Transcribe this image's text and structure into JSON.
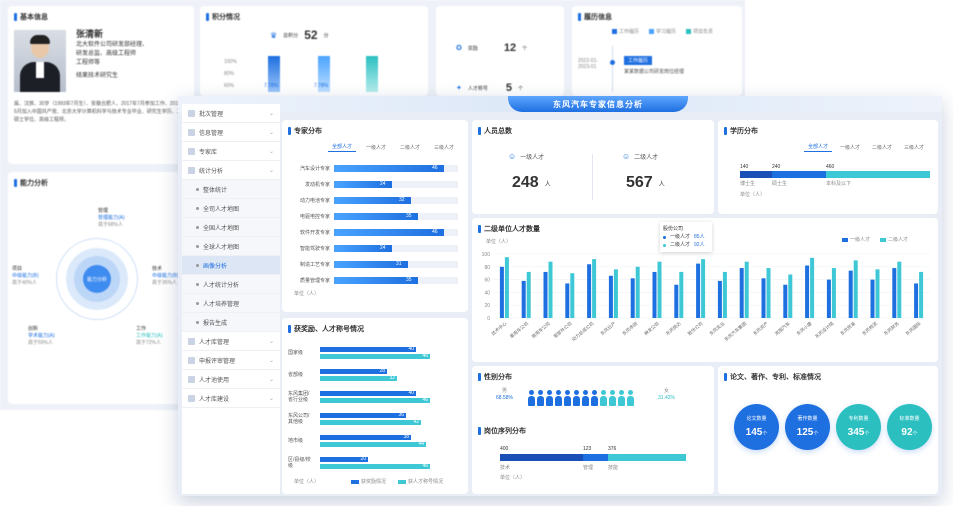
{
  "colors": {
    "accent": "#1e6fe0",
    "teal": "#2bbfc0",
    "light_blue": "#4aa3ff"
  },
  "back": {
    "basic_info": {
      "title": "基本信息",
      "name": "张清新",
      "role_lines": [
        "北大软件公司研发部经理、",
        "研发总监、高级工程师",
        "工程师等"
      ],
      "sub": "结果技术研究生",
      "bio": "属、汉族、30岁（1993年7月生）、安徽合肥人、2017年7月参加工作、2016年5月加入中国共产党、北京大学计算机科学与技术专业毕业、研究生学历、工学硕士学位、高级工程师。"
    },
    "points": {
      "title": "积分情况",
      "total_label": "总积分",
      "total_value": "52",
      "total_unit": "分",
      "y_ticks": [
        "100%",
        "80%",
        "60%"
      ],
      "pct1": "7.78%",
      "pct2": "7.78%"
    },
    "honors": {
      "label1": "奖励",
      "value1": "12",
      "unit1": "个",
      "label2": "人才称号",
      "value2": "5",
      "unit2": "个"
    },
    "resume": {
      "title": "履历信息",
      "legend": [
        "工作履历",
        "学习履历",
        "项目负责"
      ],
      "date1": "2022-01-2023-01",
      "tag1": "工作履历",
      "text1": "某某数据公司研发岗位经理"
    },
    "ability": {
      "title": "能力分析",
      "center": "能力分析",
      "n1_title": "管理",
      "n1_a": "管理能力(A)",
      "n1_b": "高于68%人",
      "n2_title": "项目",
      "n2_a": "中级能力(B)",
      "n2_b": "高于40%人",
      "n3_title": "技术",
      "n3_a": "中级能力(B)",
      "n3_b": "高于35%人",
      "n4_title": "创新",
      "n4_a": "学术能力(A)",
      "n4_b": "高于59%人",
      "n5_title": "工作",
      "n5_a": "工作能力(A)",
      "n5_b": "高于72%人"
    }
  },
  "front": {
    "banner": "东风汽车专家信息分析",
    "sidebar": [
      {
        "label": "批次管理",
        "type": "group"
      },
      {
        "label": "信息管理",
        "type": "group"
      },
      {
        "label": "专家库",
        "type": "group"
      },
      {
        "label": "统计分析",
        "type": "group"
      },
      {
        "label": "整体统计",
        "type": "sub"
      },
      {
        "label": "全司人才地图",
        "type": "sub"
      },
      {
        "label": "全国人才地图",
        "type": "sub"
      },
      {
        "label": "全球人才地图",
        "type": "sub"
      },
      {
        "label": "画像分析",
        "type": "sub-active"
      },
      {
        "label": "人才统计分析",
        "type": "sub"
      },
      {
        "label": "人才培养管理",
        "type": "sub"
      },
      {
        "label": "报告生成",
        "type": "sub"
      },
      {
        "label": "人才库管理",
        "type": "group"
      },
      {
        "label": "申报评审管理",
        "type": "group"
      },
      {
        "label": "人才池使用",
        "type": "group"
      },
      {
        "label": "人才库建设",
        "type": "group"
      }
    ],
    "expertise": {
      "title": "专家分布",
      "tabs": [
        "全部人才",
        "一级人才",
        "二级人才",
        "三级人才"
      ],
      "rows": [
        {
          "label": "汽车设计专家",
          "value": 46
        },
        {
          "label": "发动机专家",
          "value": 24
        },
        {
          "label": "动力电池专家",
          "value": 32
        },
        {
          "label": "电驱电控专家",
          "value": 35
        },
        {
          "label": "软件开发专家",
          "value": 46
        },
        {
          "label": "智能驾驶专家",
          "value": 24
        },
        {
          "label": "制造工艺专家",
          "value": 31
        },
        {
          "label": "质量管理专家",
          "value": 35
        }
      ],
      "unit": "单位（人）"
    },
    "awards": {
      "title": "获奖励、人才称号情况",
      "rows": [
        {
          "label": "国家级",
          "a": 40,
          "b": 46
        },
        {
          "label": "省部级",
          "a": 28,
          "b": 32
        },
        {
          "label": "东风集团/省行业级",
          "a": 40,
          "b": 46
        },
        {
          "label": "东风公司/其他级",
          "a": 36,
          "b": 42
        },
        {
          "label": "地市级",
          "a": 38,
          "b": 44
        },
        {
          "label": "区/县级/校级",
          "a": 20,
          "b": 46
        }
      ],
      "unit": "单位（人）",
      "legend_a": "获奖励情况",
      "legend_b": "获人才称号情况"
    },
    "total": {
      "title": "人员总数",
      "l1": "一级人才",
      "v1": "248",
      "u1": "人",
      "l2": "二级人才",
      "v2": "567",
      "u2": "人"
    },
    "education": {
      "title": "学历分布",
      "tabs": [
        "全部人才",
        "一级人才",
        "二级人才",
        "三级人才"
      ],
      "values": [
        {
          "label": "博士生",
          "value": 140
        },
        {
          "label": "硕士生",
          "value": 240
        },
        {
          "label": "本科及以下",
          "value": 460
        }
      ],
      "unit": "单位（人）"
    },
    "units": {
      "title": "二级单位人才数量",
      "unit": "单位（人）",
      "legend": [
        "一级人才",
        "二级人才"
      ],
      "y_ticks": [
        "100",
        "80",
        "60",
        "40",
        "20",
        "0"
      ],
      "tooltip": {
        "title": "股份公司",
        "r1_label": "一级人才",
        "r1_value": "85人",
        "r2_label": "二级人才",
        "r2_value": "92人"
      },
      "chart_data": {
        "type": "bar",
        "categories": [
          "技术中心",
          "乘用车公司",
          "商用车公司",
          "零部件公司",
          "动力总成公司",
          "东风日产",
          "东风本田",
          "神龙公司",
          "东风悦达",
          "股份公司",
          "东风实业",
          "东风汽车集团",
          "东风资产",
          "岚图汽车",
          "东风小康",
          "东风设计院",
          "东风贸易",
          "东风物流",
          "东风财务",
          "东风国际"
        ],
        "ylim": [
          0,
          100
        ],
        "series": [
          {
            "name": "一级人才",
            "values": [
              80,
              58,
              72,
              54,
              84,
              66,
              62,
              72,
              52,
              85,
              58,
              78,
              62,
              52,
              82,
              60,
              74,
              60,
              78,
              54
            ]
          },
          {
            "name": "二级人才",
            "values": [
              95,
              72,
              88,
              70,
              92,
              76,
              80,
              88,
              72,
              92,
              72,
              88,
              78,
              68,
              94,
              78,
              90,
              76,
              88,
              72
            ]
          }
        ]
      }
    },
    "gender": {
      "title": "性别分布",
      "male_label": "男",
      "male_pct": "68.58%",
      "female_label": "女",
      "female_pct": "31.42%"
    },
    "position": {
      "title": "岗位序列分布",
      "values": [
        {
          "label": "技术",
          "value": 400
        },
        {
          "label": "管理",
          "value": 123
        },
        {
          "label": "技能",
          "value": 376
        }
      ],
      "unit": "单位（人）"
    },
    "ip": {
      "title": "论文、著作、专利、标准情况",
      "items": [
        {
          "label": "论文数量",
          "value": "145",
          "unit": "个",
          "color": "#1e6fe0"
        },
        {
          "label": "著作数量",
          "value": "125",
          "unit": "个",
          "color": "#1e6fe0"
        },
        {
          "label": "专利数量",
          "value": "345",
          "unit": "个",
          "color": "#2bbfc0"
        },
        {
          "label": "标准数量",
          "value": "92",
          "unit": "个",
          "color": "#2bbfc0"
        }
      ]
    }
  }
}
